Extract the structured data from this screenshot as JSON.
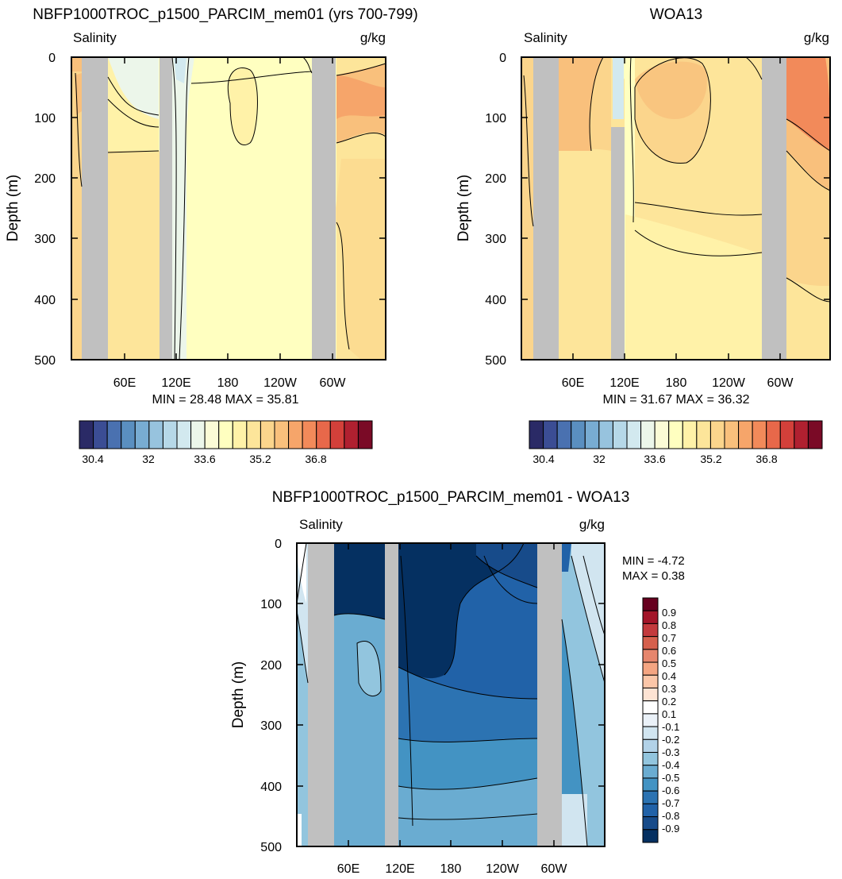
{
  "chart_data": [
    {
      "type": "heatmap",
      "title": "NBFP1000TROC_p1500_PARCIM_mem01 (yrs 700-799)",
      "left_label": "Salinity",
      "right_label": "g/kg",
      "ylabel": "Depth (m)",
      "ylim": [
        500,
        0
      ],
      "yticks": [
        "0",
        "100",
        "200",
        "300",
        "400",
        "500"
      ],
      "xticks": [
        "60E",
        "120E",
        "180",
        "120W",
        "60W"
      ],
      "stats": "MIN =  28.48  MAX =  35.81",
      "colorbar_labels": [
        "30.4",
        "32",
        "33.6",
        "35.2",
        "36.8"
      ]
    },
    {
      "type": "heatmap",
      "title": "WOA13",
      "left_label": "Salinity",
      "right_label": "g/kg",
      "ylabel": "Depth (m)",
      "ylim": [
        500,
        0
      ],
      "yticks": [
        "0",
        "100",
        "200",
        "300",
        "400",
        "500"
      ],
      "xticks": [
        "60E",
        "120E",
        "180",
        "120W",
        "60W"
      ],
      "stats": "MIN =  31.67  MAX =  36.32",
      "colorbar_labels": [
        "30.4",
        "32",
        "33.6",
        "35.2",
        "36.8"
      ]
    },
    {
      "type": "heatmap",
      "title": "NBFP1000TROC_p1500_PARCIM_mem01 - WOA13",
      "left_label": "Salinity",
      "right_label": "g/kg",
      "ylabel": "Depth (m)",
      "ylim": [
        500,
        0
      ],
      "yticks": [
        "0",
        "100",
        "200",
        "300",
        "400",
        "500"
      ],
      "xticks": [
        "60E",
        "120E",
        "180",
        "120W",
        "60W"
      ],
      "stats_min": "MIN =  -4.72",
      "stats_max": "MAX =   0.38",
      "colorbar_labels": [
        "0.9",
        "0.8",
        "0.7",
        "0.6",
        "0.5",
        "0.4",
        "0.3",
        "0.2",
        "0.1",
        "-0.1",
        "-0.2",
        "-0.3",
        "-0.4",
        "-0.5",
        "-0.6",
        "-0.7",
        "-0.8",
        "-0.9"
      ]
    }
  ],
  "palette_salinity": [
    "#2a2a66",
    "#3b4d94",
    "#4a71b0",
    "#5a8fc0",
    "#78acd2",
    "#97c3de",
    "#b6d8e8",
    "#d2e9ef",
    "#ecf6ea",
    "#fbfbd6",
    "#ffffc0",
    "#fff2a8",
    "#fde59a",
    "#fbd58c",
    "#f9c07c",
    "#f6a56a",
    "#f28a5a",
    "#e8684a",
    "#d3403a",
    "#b02030",
    "#7a0a26"
  ],
  "palette_diff": [
    "#67001f",
    "#a31529",
    "#c33a3d",
    "#d6604d",
    "#e6866d",
    "#f4a582",
    "#fbc6a8",
    "#fde3d3",
    "#ffffff",
    "#eaf1f8",
    "#d1e5f0",
    "#b2d2e8",
    "#92c5de",
    "#6aacd1",
    "#4393c3",
    "#2c73b2",
    "#2162a8",
    "#174b8a",
    "#053061"
  ]
}
